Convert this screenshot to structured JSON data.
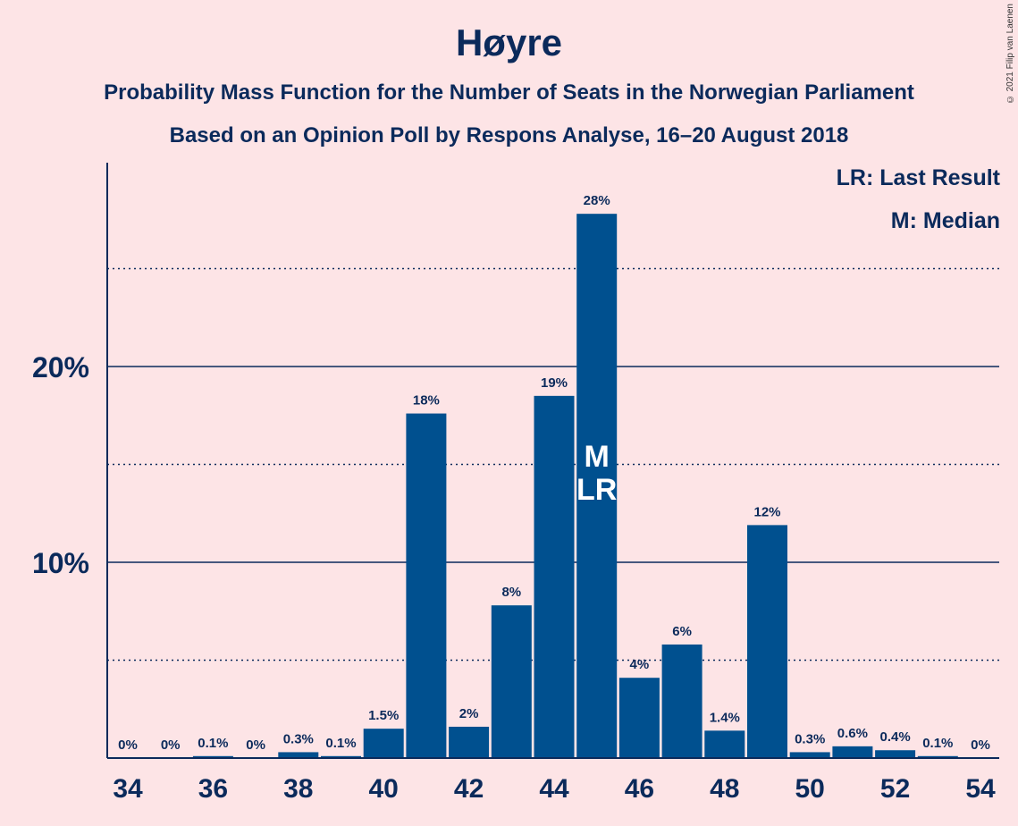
{
  "title": "Høyre",
  "subtitle1": "Probability Mass Function for the Number of Seats in the Norwegian Parliament",
  "subtitle2": "Based on an Opinion Poll by Respons Analyse, 16–20 August 2018",
  "legend": {
    "lr": "LR: Last Result",
    "m": "M: Median"
  },
  "copyright": "© 2021 Filip van Laenen",
  "colors": {
    "background": "#FDE4E6",
    "bar": "#00508F",
    "text": "#0B2A5B"
  },
  "chart_data": {
    "type": "bar",
    "x": [
      34,
      35,
      36,
      37,
      38,
      39,
      40,
      41,
      42,
      43,
      44,
      45,
      46,
      47,
      48,
      49,
      50,
      51,
      52,
      53,
      54
    ],
    "values": [
      0,
      0,
      0.1,
      0,
      0.3,
      0.1,
      1.5,
      17.6,
      1.6,
      7.8,
      18.5,
      27.8,
      4.1,
      5.8,
      1.4,
      11.9,
      0.3,
      0.6,
      0.4,
      0.1,
      0
    ],
    "labels": [
      "0%",
      "0%",
      "0.1%",
      "0%",
      "0.3%",
      "0.1%",
      "1.5%",
      "18%",
      "2%",
      "8%",
      "19%",
      "28%",
      "4%",
      "6%",
      "1.4%",
      "12%",
      "0.3%",
      "0.6%",
      "0.4%",
      "0.1%",
      "0%"
    ],
    "x_ticks": [
      "34",
      "36",
      "38",
      "40",
      "42",
      "44",
      "46",
      "48",
      "50",
      "52",
      "54"
    ],
    "y_ticks": [
      "10%",
      "20%"
    ],
    "ylim": [
      0,
      30
    ],
    "unit": "%",
    "median_seat": 45,
    "last_result_seat": 45,
    "median_mark": "M",
    "last_result_mark": "LR",
    "grid": "solid at 10% and 20%, dotted at 5%, 15%, 25%"
  }
}
